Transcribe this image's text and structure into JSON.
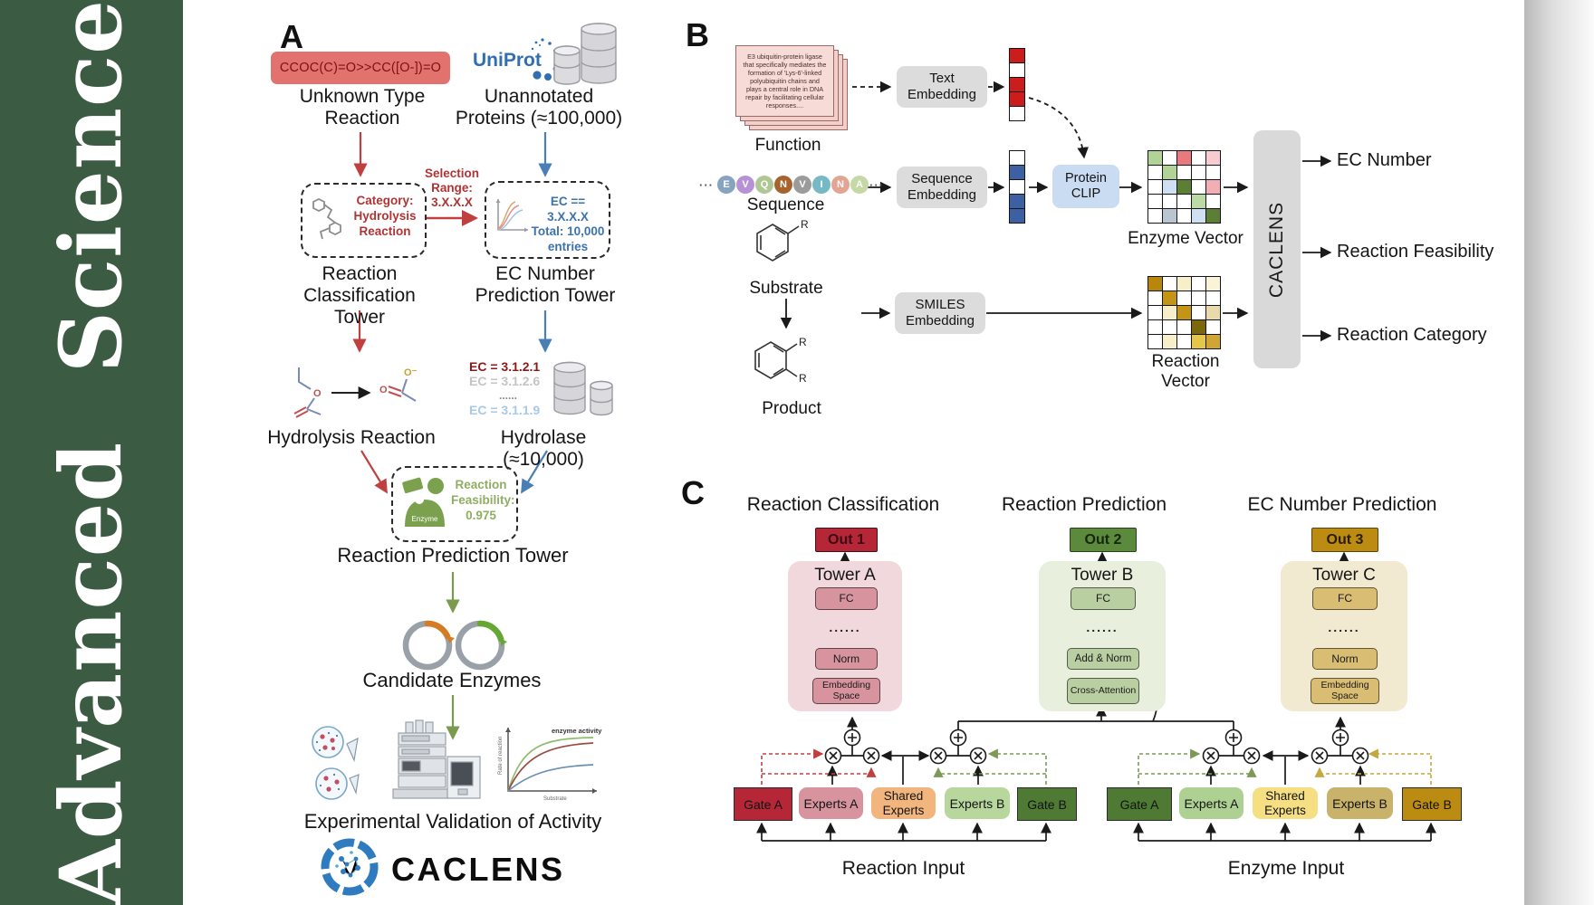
{
  "journal": {
    "name": "Advanced Science"
  },
  "colors": {
    "sidebar_green": "#3c5b43",
    "red_accent": "#c04040",
    "blue_accent": "#4a7fb5",
    "green_accent": "#7a9a50",
    "uniprot_blue": "#2f6fb2",
    "tower_pink": "#f1d8dd",
    "tower_green": "#e8f0dd",
    "tower_gold": "#f2ead0",
    "out1_red": "#b52737",
    "out2_green": "#5c8a3d",
    "out3_gold": "#bb8b12",
    "clip_blue": "#cadcf2",
    "embed_gray": "#dcdcdc"
  },
  "panelA": {
    "label": "A",
    "smiles": "CCOC(C)=O>>CC([O-])=O",
    "unknown_line1": "Unknown Type",
    "unknown_line2": "Reaction",
    "uniprot": "UniProt",
    "unannotated_line1": "Unannotated",
    "unannotated_line2": "Proteins (≈100,000)",
    "category_line1": "Category:",
    "category_line2": "Hydrolysis",
    "category_line3": "Reaction",
    "selection_line1": "Selection",
    "selection_line2": "Range:",
    "selection_line3": "3.X.X.X",
    "ecbox_line1": "EC == 3.X.X.X",
    "ecbox_line2": "Total: 10,000",
    "ecbox_line3": "entries",
    "tower1_line1": "Reaction",
    "tower1_line2": "Classification Tower",
    "tower2_line1": "EC Number",
    "tower2_line2": "Prediction Tower",
    "eclist": [
      "EC = 3.1.2.1",
      "EC = 3.1.2.6",
      "......",
      "EC = 3.1.1.9"
    ],
    "hydrolysis_label": "Hydrolysis Reaction",
    "hydrolase_label": "Hydrolase (≈10,000)",
    "enzyme_icon_label": "Enzyme",
    "feasibility_line1": "Reaction",
    "feasibility_line2": "Feasibility:",
    "feasibility_line3": "0.975",
    "prediction_tower_label": "Reaction Prediction Tower",
    "candidates_label": "Candidate Enzymes",
    "plot": {
      "curve_label": "enzyme activity",
      "ylabel": "Rate of reaction",
      "xlabel": "Substrate"
    },
    "validation_label": "Experimental Validation of Activity",
    "wordmark": "CACLENS"
  },
  "panelB": {
    "label": "B",
    "function_card_text": "E3 ubiquitin-protein ligase that specifically mediates the formation of 'Lys-6'-linked polyubiquitin chains and plays a central role in DNA repair by facilitating cellular responses....",
    "function_label": "Function",
    "sequence_label": "Sequence",
    "ellipsis": "···",
    "sequence_residues": [
      {
        "letter": "E",
        "color": "#87a3c0"
      },
      {
        "letter": "V",
        "color": "#b791d8"
      },
      {
        "letter": "Q",
        "color": "#afc795"
      },
      {
        "letter": "N",
        "color": "#a8622e"
      },
      {
        "letter": "V",
        "color": "#9b9b9b"
      },
      {
        "letter": "I",
        "color": "#74b9c3"
      },
      {
        "letter": "N",
        "color": "#e3a492"
      },
      {
        "letter": "A",
        "color": "#c6d8a6"
      }
    ],
    "text_embedding": "Text Embedding",
    "sequence_embedding": "Sequence Embedding",
    "smiles_embedding": "SMILES Embedding",
    "protein_clip": "Protein CLIP",
    "substrate_label": "Substrate",
    "product_label": "Product",
    "r_group": "R",
    "enzyme_vector_label": "Enzyme Vector",
    "reaction_vector_label": "Reaction Vector",
    "caclens_label": "CACLENS",
    "outputs": [
      "EC Number",
      "Reaction Feasibility",
      "Reaction Category"
    ],
    "text_vector_cells": [
      "#cc1d1d",
      "#ffffff",
      "#cc1d1d",
      "#cc1d1d",
      "#ffffff"
    ],
    "seq_vector_cells": [
      "#ffffff",
      "#3c60a2",
      "#ffffff",
      "#3c60a2",
      "#3c60a2"
    ],
    "enzyme_vector_cells": [
      [
        "#b2d396",
        "#ffffff",
        "#e8797d",
        "#ffffff",
        "#f7ccd0"
      ],
      [
        "#ffffff",
        "#b2d396",
        "#ffffff",
        "#ffffff",
        "#ffffff"
      ],
      [
        "#ffffff",
        "#cfe0f2",
        "#5d7f35",
        "#ffffff",
        "#f2aeb2"
      ],
      [
        "#ffffff",
        "#ffffff",
        "#ffffff",
        "#bcdba4",
        "#ffffff"
      ],
      [
        "#ffffff",
        "#b9c5cf",
        "#ffffff",
        "#cfe0f2",
        "#5d7f35"
      ]
    ],
    "reaction_vector_cells": [
      [
        "#b8860b",
        "#ffffff",
        "#f6efca",
        "#ffffff",
        "#faf3d8"
      ],
      [
        "#ffffff",
        "#c49417",
        "#ffffff",
        "#ffffff",
        "#ffffff"
      ],
      [
        "#ffffff",
        "#f6efca",
        "#c49417",
        "#ffffff",
        "#e9daa9"
      ],
      [
        "#ffffff",
        "#ffffff",
        "#ffffff",
        "#7c660e",
        "#ffffff"
      ],
      [
        "#ffffff",
        "#f6efca",
        "#ffffff",
        "#e4c64b",
        "#d0a533"
      ]
    ]
  },
  "panelC": {
    "label": "C",
    "columns": [
      {
        "title": "Reaction Classification",
        "out": "Out 1",
        "tower": "Tower A",
        "blocks": [
          "FC",
          "......",
          "Norm",
          "Embedding Space"
        ]
      },
      {
        "title": "Reaction Prediction",
        "out": "Out 2",
        "tower": "Tower B",
        "blocks": [
          "FC",
          "......",
          "Add & Norm",
          "Cross-Attention"
        ]
      },
      {
        "title": "EC Number Prediction",
        "out": "Out 3",
        "tower": "Tower C",
        "blocks": [
          "FC",
          "......",
          "Norm",
          "Embedding Space"
        ]
      }
    ],
    "moe_groups": [
      {
        "input_label": "Reaction Input",
        "boxes": [
          "Gate A",
          "Experts A",
          "Shared Experts",
          "Experts B",
          "Gate B"
        ]
      },
      {
        "input_label": "Enzyme Input",
        "boxes": [
          "Gate A",
          "Experts A",
          "Shared Experts",
          "Experts B",
          "Gate B"
        ]
      }
    ]
  }
}
